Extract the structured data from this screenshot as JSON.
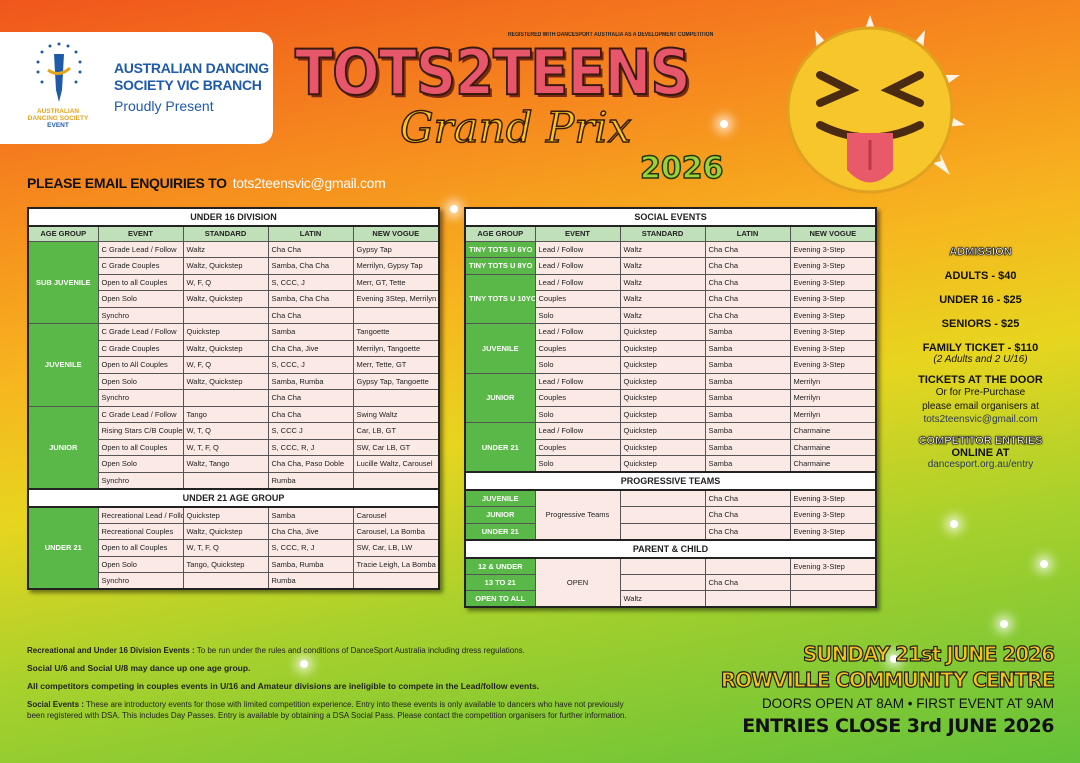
{
  "header": {
    "org_line1": "AUSTRALIAN DANCING",
    "org_line2": "SOCIETY VIC BRANCH",
    "present": "Proudly Present",
    "logo_text": "AUSTRALIAN DANCING SOCIETY EVENT",
    "registered": "REGISTERED WITH DANCESPORT AUSTRALIA AS A DEVELOPMENT COMPETITION",
    "title": "TOTS2TEENS",
    "subtitle": "Grand Prix",
    "year": "2026",
    "enquiries_label": "PLEASE EMAIL ENQUIRIES TO",
    "enquiries_email": "tots2teensvic@gmail.com"
  },
  "columns": [
    "AGE GROUP",
    "EVENT",
    "STANDARD",
    "LATIN",
    "NEW VOGUE"
  ],
  "left_table": [
    {
      "title": "UNDER 16 DIVISION",
      "show_header": true,
      "groups": [
        {
          "age": "SUB JUVENILE",
          "rows": [
            [
              "C Grade Lead / Follow",
              "Waltz",
              "Cha Cha",
              "Gypsy Tap"
            ],
            [
              "C Grade Couples",
              "Waltz, Quickstep",
              "Samba, Cha Cha",
              "Merrilyn, Gypsy Tap"
            ],
            [
              "Open to all Couples",
              "W, F, Q",
              "S, CCC, J",
              "Merr, GT, Tette"
            ],
            [
              "Open Solo",
              "Waltz, Quickstep",
              "Samba, Cha Cha",
              "Evening 3Step, Merrilyn"
            ],
            [
              "Synchro",
              "",
              "Cha Cha",
              ""
            ]
          ]
        },
        {
          "age": "JUVENILE",
          "rows": [
            [
              "C Grade Lead / Follow",
              "Quickstep",
              "Samba",
              "Tangoette"
            ],
            [
              "C Grade Couples",
              "Waltz, Quickstep",
              "Cha Cha, Jive",
              "Merrilyn, Tangoette"
            ],
            [
              "Open to All Couples",
              "W, F, Q",
              "S, CCC, J",
              "Merr, Tette, GT"
            ],
            [
              "Open Solo",
              "Waltz, Quickstep",
              "Samba, Rumba",
              "Gypsy Tap, Tangoette"
            ],
            [
              "Synchro",
              "",
              "Cha Cha",
              ""
            ]
          ]
        },
        {
          "age": "JUNIOR",
          "rows": [
            [
              "C Grade Lead / Follow",
              "Tango",
              "Cha Cha",
              "Swing Waltz"
            ],
            [
              "Rising Stars C/B Couples",
              "W, T, Q",
              "S, CCC J",
              "Car, LB, GT"
            ],
            [
              "Open to all Couples",
              "W, T, F, Q",
              "S, CCC, R, J",
              "SW, Car LB, GT"
            ],
            [
              "Open Solo",
              "Waltz, Tango",
              "Cha Cha, Paso Doble",
              "Lucille Waltz, Carousel"
            ],
            [
              "Synchro",
              "",
              "Rumba",
              ""
            ]
          ]
        }
      ]
    },
    {
      "title": "UNDER 21 AGE GROUP",
      "show_header": false,
      "groups": [
        {
          "age": "UNDER 21",
          "rows": [
            [
              "Recreational Lead / Follow",
              "Quickstep",
              "Samba",
              "Carousel"
            ],
            [
              "Recreational Couples",
              "Waltz, Quickstep",
              "Cha Cha, Jive",
              "Carousel, La Bomba"
            ],
            [
              "Open to all Couples",
              "W, T, F, Q",
              "S, CCC, R, J",
              "SW, Car, LB, LW"
            ],
            [
              "Open Solo",
              "Tango, Quickstep",
              "Samba, Rumba",
              "Tracie Leigh, La Bomba"
            ],
            [
              "Synchro",
              "",
              "Rumba",
              ""
            ]
          ]
        }
      ]
    }
  ],
  "right_table": [
    {
      "title": "SOCIAL EVENTS",
      "show_header": true,
      "groups": [
        {
          "age": "TINY TOTS U 6YO",
          "rows": [
            [
              "Lead / Follow",
              "Waltz",
              "Cha Cha",
              "Evening 3-Step"
            ]
          ]
        },
        {
          "age": "TINY TOTS U 8YO",
          "rows": [
            [
              "Lead / Follow",
              "Waltz",
              "Cha Cha",
              "Evening 3-Step"
            ]
          ]
        },
        {
          "age": "TINY TOTS U 10YO",
          "rows": [
            [
              "Lead / Follow",
              "Waltz",
              "Cha Cha",
              "Evening 3-Step"
            ],
            [
              "Couples",
              "Waltz",
              "Cha Cha",
              "Evening 3-Step"
            ],
            [
              "Solo",
              "Waltz",
              "Cha Cha",
              "Evening 3-Step"
            ]
          ]
        },
        {
          "age": "JUVENILE",
          "rows": [
            [
              "Lead / Follow",
              "Quickstep",
              "Samba",
              "Evening 3-Step"
            ],
            [
              "Couples",
              "Quickstep",
              "Samba",
              "Evening 3-Step"
            ],
            [
              "Solo",
              "Quickstep",
              "Samba",
              "Evening 3-Step"
            ]
          ]
        },
        {
          "age": "JUNIOR",
          "rows": [
            [
              "Lead / Follow",
              "Quickstep",
              "Samba",
              "Merrilyn"
            ],
            [
              "Couples",
              "Quickstep",
              "Samba",
              "Merrilyn"
            ],
            [
              "Solo",
              "Quickstep",
              "Samba",
              "Merrilyn"
            ]
          ]
        },
        {
          "age": "UNDER 21",
          "rows": [
            [
              "Lead / Follow",
              "Quickstep",
              "Samba",
              "Charmaine"
            ],
            [
              "Couples",
              "Quickstep",
              "Samba",
              "Charmaine"
            ],
            [
              "Solo",
              "Quickstep",
              "Samba",
              "Charmaine"
            ]
          ]
        }
      ]
    },
    {
      "title": "PROGRESSIVE TEAMS",
      "show_header": false,
      "shared_event": "Progressive Teams",
      "rows": [
        {
          "age": "JUVENILE",
          "standard": "",
          "latin": "Cha Cha",
          "new_vogue": "Evening 3-Step"
        },
        {
          "age": "JUNIOR",
          "standard": "",
          "latin": "Cha Cha",
          "new_vogue": "Evening 3-Step"
        },
        {
          "age": "UNDER 21",
          "standard": "",
          "latin": "Cha Cha",
          "new_vogue": "Evening 3-Step"
        }
      ]
    },
    {
      "title": "PARENT  & CHILD",
      "show_header": false,
      "shared_event": "OPEN",
      "rows": [
        {
          "age": "12 & UNDER",
          "standard": "",
          "latin": "",
          "new_vogue": "Evening 3-Step"
        },
        {
          "age": "13 TO 21",
          "standard": "",
          "latin": "Cha Cha",
          "new_vogue": ""
        },
        {
          "age": "OPEN TO ALL",
          "standard": "Waltz",
          "latin": "",
          "new_vogue": ""
        }
      ]
    }
  ],
  "admission": {
    "title": "ADMISSION",
    "adults": "ADULTS - $40",
    "under16": "UNDER 16 - $25",
    "seniors": "SENIORS - $25",
    "family": "FAMILY TICKET - $110",
    "family_note": "(2 Adults and 2 U/16)",
    "door": "TICKETS AT THE DOOR",
    "pre1": "Or for Pre-Purchase",
    "pre2": "please email organisers at",
    "email": "tots2teensvic@gmail.com",
    "entries": "COMPETITOR ENTRIES",
    "online": "ONLINE AT",
    "url": "dancesport.org.au/entry"
  },
  "notes": {
    "n1_bold": "Recreational and Under 16 Division Events :",
    "n1_text": " To be run under the rules and conditions of DanceSport Australia including dress regulations.",
    "n2": "Social U/6 and Social U/8 may dance up one age group.",
    "n3": "All competitors competing in couples events in U/16 and Amateur divisions are ineligible to compete in the Lead/follow events.",
    "n4_bold": "Social Events :",
    "n4_text": " These are introductory events for those with limited competition experience. Entry into these events is only available to dancers who have not previously been registered with DSA. This includes Day Passes. Entry is available by obtaining a DSA Social Pass. Please contact the competition organisers for further information."
  },
  "event": {
    "date": "SUNDAY 21st JUNE 2026",
    "venue": "ROWVILLE COMMUNITY CENTRE",
    "doors": "DOORS OPEN AT 8AM • FIRST EVENT AT 9AM",
    "close": "ENTRIES CLOSE 3rd JUNE 2026"
  },
  "colors": {
    "age_green": "#5ab848",
    "header_green": "#bfe0b8",
    "title_pink": "#e8566b",
    "gold": "#f6c21c",
    "logo_blue": "#1f5aa8"
  },
  "icons": {
    "emoji": "squinting-face-with-tongue",
    "logo": "dancer-torch-stars"
  }
}
